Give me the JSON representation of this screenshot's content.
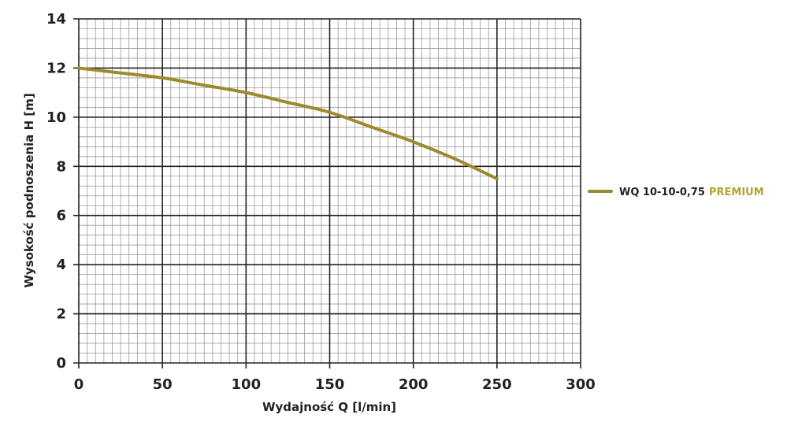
{
  "chart_data": {
    "type": "line",
    "xlabel": "Wydajność Q [l/min]",
    "ylabel": "Wysokość podnoszenia H [m]",
    "xlim": [
      0,
      300
    ],
    "ylim": [
      0,
      14
    ],
    "x_ticks": [
      0,
      50,
      100,
      150,
      200,
      250,
      300
    ],
    "y_ticks": [
      0,
      2,
      4,
      6,
      8,
      10,
      12,
      14
    ],
    "grid": true,
    "legend_position": "right",
    "series": [
      {
        "name": "WQ 10-10-0,75",
        "name_suffix": "PREMIUM",
        "color": "#9c8a2e",
        "x": [
          0,
          25,
          50,
          75,
          100,
          125,
          150,
          175,
          200,
          225,
          250
        ],
        "y": [
          12.0,
          11.8,
          11.6,
          11.3,
          11.0,
          10.6,
          10.2,
          9.6,
          9.0,
          8.3,
          7.5
        ]
      }
    ]
  },
  "colors": {
    "major_grid": "#222222",
    "minor_grid": "#9a9a9a",
    "premium_text": "#b3a12e"
  }
}
